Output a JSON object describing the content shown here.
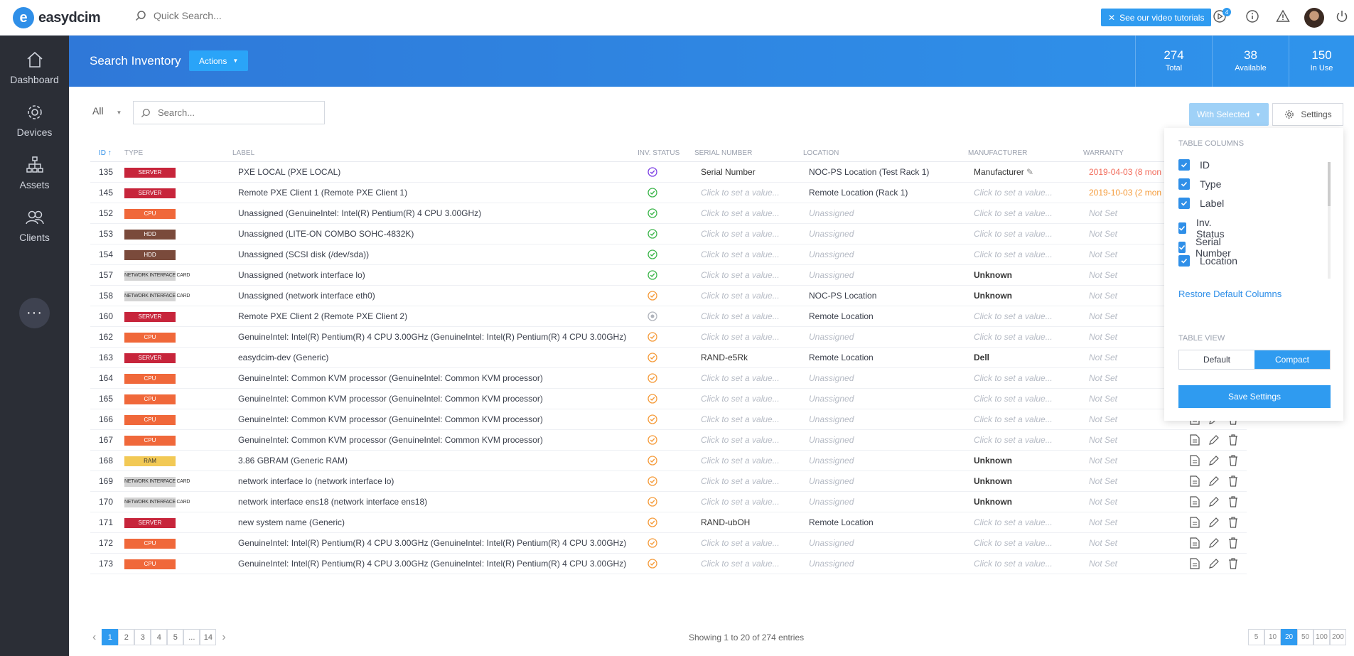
{
  "app": {
    "logo_letter": "e",
    "name": "easydcim"
  },
  "topbar": {
    "search_placeholder": "Quick Search...",
    "video_label": "See our video tutorials",
    "notif_count": "4"
  },
  "sidebar": {
    "items": [
      {
        "label": "Dashboard",
        "icon": "home-icon"
      },
      {
        "label": "Devices",
        "icon": "gear-icon"
      },
      {
        "label": "Assets",
        "icon": "hierarchy-icon"
      },
      {
        "label": "Clients",
        "icon": "users-icon"
      }
    ],
    "more_label": "···"
  },
  "banner": {
    "title": "Search Inventory",
    "actions_label": "Actions",
    "stats": [
      {
        "value": "274",
        "label": "Total"
      },
      {
        "value": "38",
        "label": "Available"
      },
      {
        "value": "150",
        "label": "In Use"
      }
    ]
  },
  "filters": {
    "all_label": "All",
    "search_placeholder": "Search...",
    "with_selected_label": "With Selected",
    "settings_label": "Settings"
  },
  "table": {
    "headers": [
      "ID",
      "Type",
      "Label",
      "Inv. Status",
      "Serial Number",
      "Location",
      "Manufacturer",
      "Warranty"
    ],
    "rows": [
      {
        "id": "135",
        "type": "SERVER",
        "type_class": "server",
        "label": "PXE LOCAL (PXE LOCAL)",
        "status": "purple",
        "serial": "Serial Number",
        "serial_set": true,
        "location": "NOC-PS Location (Test Rack 1)",
        "location_set": true,
        "manufacturer": "Manufacturer",
        "man_set": true,
        "warranty": "2019-04-03 (8 mon",
        "war_class": "war-red"
      },
      {
        "id": "145",
        "type": "SERVER",
        "type_class": "server",
        "label": "Remote PXE Client 1 (Remote PXE Client 1)",
        "status": "green",
        "serial": "Click to set a value...",
        "serial_set": false,
        "location": "Remote Location (Rack 1)",
        "location_set": true,
        "manufacturer": "Click to set a value...",
        "man_set": false,
        "warranty": "2019-10-03 (2 mon",
        "war_class": "war-orange"
      },
      {
        "id": "152",
        "type": "CPU",
        "type_class": "cpu",
        "label": "Unassigned (GenuineIntel: Intel(R) Pentium(R) 4 CPU 3.00GHz)",
        "status": "green",
        "serial": "Click to set a value...",
        "serial_set": false,
        "location": "Unassigned",
        "location_set": false,
        "manufacturer": "Click to set a value...",
        "man_set": false,
        "warranty": "Not Set",
        "war_class": "placeholder"
      },
      {
        "id": "153",
        "type": "HDD",
        "type_class": "hdd",
        "label": "Unassigned (LITE-ON COMBO SOHC-4832K)",
        "status": "green",
        "serial": "Click to set a value...",
        "serial_set": false,
        "location": "Unassigned",
        "location_set": false,
        "manufacturer": "Click to set a value...",
        "man_set": false,
        "warranty": "Not Set",
        "war_class": "placeholder"
      },
      {
        "id": "154",
        "type": "HDD",
        "type_class": "hdd",
        "label": "Unassigned (SCSI disk (/dev/sda))",
        "status": "green",
        "serial": "Click to set a value...",
        "serial_set": false,
        "location": "Unassigned",
        "location_set": false,
        "manufacturer": "Click to set a value...",
        "man_set": false,
        "warranty": "Not Set",
        "war_class": "placeholder"
      },
      {
        "id": "157",
        "type": "NETWORK INTERFACE CARD",
        "type_class": "nic",
        "label": "Unassigned (network interface lo)",
        "status": "green",
        "serial": "Click to set a value...",
        "serial_set": false,
        "location": "Unassigned",
        "location_set": false,
        "manufacturer": "Unknown",
        "man_set": true,
        "warranty": "Not Set",
        "war_class": "placeholder"
      },
      {
        "id": "158",
        "type": "NETWORK INTERFACE CARD",
        "type_class": "nic",
        "label": "Unassigned (network interface eth0)",
        "status": "orange",
        "serial": "Click to set a value...",
        "serial_set": false,
        "location": "NOC-PS Location",
        "location_set": true,
        "manufacturer": "Unknown",
        "man_set": true,
        "warranty": "Not Set",
        "war_class": "placeholder"
      },
      {
        "id": "160",
        "type": "SERVER",
        "type_class": "server",
        "label": "Remote PXE Client 2 (Remote PXE Client 2)",
        "status": "gray",
        "serial": "Click to set a value...",
        "serial_set": false,
        "location": "Remote Location",
        "location_set": true,
        "manufacturer": "Click to set a value...",
        "man_set": false,
        "warranty": "Not Set",
        "war_class": "placeholder"
      },
      {
        "id": "162",
        "type": "CPU",
        "type_class": "cpu",
        "label": "GenuineIntel: Intel(R) Pentium(R) 4 CPU 3.00GHz (GenuineIntel: Intel(R) Pentium(R) 4 CPU 3.00GHz)",
        "status": "orange",
        "serial": "Click to set a value...",
        "serial_set": false,
        "location": "Unassigned",
        "location_set": false,
        "manufacturer": "Click to set a value...",
        "man_set": false,
        "warranty": "Not Set",
        "war_class": "placeholder"
      },
      {
        "id": "163",
        "type": "SERVER",
        "type_class": "server",
        "label": "easydcim-dev (Generic)",
        "status": "orange",
        "serial": "RAND-e5Rk",
        "serial_set": true,
        "location": "Remote Location",
        "location_set": true,
        "manufacturer": "Dell",
        "man_set": true,
        "warranty": "Not Set",
        "war_class": "placeholder"
      },
      {
        "id": "164",
        "type": "CPU",
        "type_class": "cpu",
        "label": "GenuineIntel: Common KVM processor (GenuineIntel: Common KVM processor)",
        "status": "orange",
        "serial": "Click to set a value...",
        "serial_set": false,
        "location": "Unassigned",
        "location_set": false,
        "manufacturer": "Click to set a value...",
        "man_set": false,
        "warranty": "Not Set",
        "war_class": "placeholder"
      },
      {
        "id": "165",
        "type": "CPU",
        "type_class": "cpu",
        "label": "GenuineIntel: Common KVM processor (GenuineIntel: Common KVM processor)",
        "status": "orange",
        "serial": "Click to set a value...",
        "serial_set": false,
        "location": "Unassigned",
        "location_set": false,
        "manufacturer": "Click to set a value...",
        "man_set": false,
        "warranty": "Not Set",
        "war_class": "placeholder"
      },
      {
        "id": "166",
        "type": "CPU",
        "type_class": "cpu",
        "label": "GenuineIntel: Common KVM processor (GenuineIntel: Common KVM processor)",
        "status": "orange",
        "serial": "Click to set a value...",
        "serial_set": false,
        "location": "Unassigned",
        "location_set": false,
        "manufacturer": "Click to set a value...",
        "man_set": false,
        "warranty": "Not Set",
        "war_class": "placeholder"
      },
      {
        "id": "167",
        "type": "CPU",
        "type_class": "cpu",
        "label": "GenuineIntel: Common KVM processor (GenuineIntel: Common KVM processor)",
        "status": "orange",
        "serial": "Click to set a value...",
        "serial_set": false,
        "location": "Unassigned",
        "location_set": false,
        "manufacturer": "Click to set a value...",
        "man_set": false,
        "warranty": "Not Set",
        "war_class": "placeholder"
      },
      {
        "id": "168",
        "type": "RAM",
        "type_class": "ram",
        "label": "3.86 GBRAM (Generic RAM)",
        "status": "orange",
        "serial": "Click to set a value...",
        "serial_set": false,
        "location": "Unassigned",
        "location_set": false,
        "manufacturer": "Unknown",
        "man_set": true,
        "warranty": "Not Set",
        "war_class": "placeholder"
      },
      {
        "id": "169",
        "type": "NETWORK INTERFACE CARD",
        "type_class": "nic",
        "label": "network interface lo (network interface lo)",
        "status": "orange",
        "serial": "Click to set a value...",
        "serial_set": false,
        "location": "Unassigned",
        "location_set": false,
        "manufacturer": "Unknown",
        "man_set": true,
        "warranty": "Not Set",
        "war_class": "placeholder"
      },
      {
        "id": "170",
        "type": "NETWORK INTERFACE CARD",
        "type_class": "nic",
        "label": "network interface ens18 (network interface ens18)",
        "status": "orange",
        "serial": "Click to set a value...",
        "serial_set": false,
        "location": "Unassigned",
        "location_set": false,
        "manufacturer": "Unknown",
        "man_set": true,
        "warranty": "Not Set",
        "war_class": "placeholder"
      },
      {
        "id": "171",
        "type": "SERVER",
        "type_class": "server",
        "label": "new system name (Generic)",
        "status": "orange",
        "serial": "RAND-ubOH",
        "serial_set": true,
        "location": "Remote Location",
        "location_set": true,
        "manufacturer": "Click to set a value...",
        "man_set": false,
        "warranty": "Not Set",
        "war_class": "placeholder"
      },
      {
        "id": "172",
        "type": "CPU",
        "type_class": "cpu",
        "label": "GenuineIntel: Intel(R) Pentium(R) 4 CPU 3.00GHz (GenuineIntel: Intel(R) Pentium(R) 4 CPU 3.00GHz)",
        "status": "orange",
        "serial": "Click to set a value...",
        "serial_set": false,
        "location": "Unassigned",
        "location_set": false,
        "manufacturer": "Click to set a value...",
        "man_set": false,
        "warranty": "Not Set",
        "war_class": "placeholder"
      },
      {
        "id": "173",
        "type": "CPU",
        "type_class": "cpu",
        "label": "GenuineIntel: Intel(R) Pentium(R) 4 CPU 3.00GHz (GenuineIntel: Intel(R) Pentium(R) 4 CPU 3.00GHz)",
        "status": "orange",
        "serial": "Click to set a value...",
        "serial_set": false,
        "location": "Unassigned",
        "location_set": false,
        "manufacturer": "Click to set a value...",
        "man_set": false,
        "warranty": "Not Set",
        "war_class": "placeholder"
      }
    ]
  },
  "settings_panel": {
    "columns_title": "Table Columns",
    "columns": [
      "ID",
      "Type",
      "Label",
      "Inv. Status",
      "Serial Number",
      "Location"
    ],
    "restore_label": "Restore Default Columns",
    "view_title": "Table View",
    "view_default": "Default",
    "view_compact": "Compact",
    "save_label": "Save Settings"
  },
  "pagination": {
    "pages": [
      "1",
      "2",
      "3",
      "4",
      "5",
      "...",
      "14"
    ],
    "prev": "‹",
    "next": "›",
    "showing": "Showing 1 to 20 of 274 entries",
    "per_page": [
      "5",
      "10",
      "20",
      "50",
      "100",
      "200"
    ]
  },
  "colors": {
    "accent": "#2f9bf0",
    "status_green": "#3bb54a",
    "status_orange": "#f59b3a",
    "status_purple": "#7b3fe4",
    "status_gray": "#b0b4bc"
  }
}
